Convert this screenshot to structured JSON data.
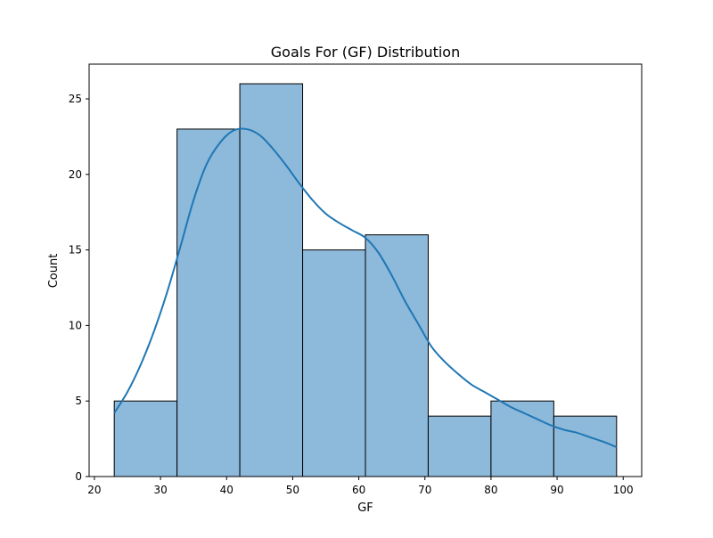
{
  "chart_data": {
    "type": "bar",
    "title": "Goals For (GF) Distribution",
    "xlabel": "GF",
    "ylabel": "Count",
    "xlim": [
      19.2,
      102.8
    ],
    "ylim": [
      0,
      27.3
    ],
    "xticks": [
      20,
      30,
      40,
      50,
      60,
      70,
      80,
      90,
      100
    ],
    "yticks": [
      0,
      5,
      10,
      15,
      20,
      25
    ],
    "bins": [
      {
        "start": 23.0,
        "end": 32.5,
        "count": 5
      },
      {
        "start": 32.5,
        "end": 42.0,
        "count": 23
      },
      {
        "start": 42.0,
        "end": 51.5,
        "count": 26
      },
      {
        "start": 51.5,
        "end": 61.0,
        "count": 15
      },
      {
        "start": 61.0,
        "end": 70.5,
        "count": 16
      },
      {
        "start": 70.5,
        "end": 80.0,
        "count": 4
      },
      {
        "start": 80.0,
        "end": 89.5,
        "count": 5
      },
      {
        "start": 89.5,
        "end": 99.0,
        "count": 4
      }
    ],
    "kde": {
      "x": [
        23,
        25,
        27,
        29,
        31,
        33,
        35,
        37,
        39,
        41,
        43,
        45,
        47,
        49,
        51,
        53,
        55,
        57,
        59,
        61,
        63,
        65,
        67,
        69,
        71,
        73,
        75,
        77,
        79,
        81,
        83,
        85,
        87,
        89,
        91,
        93,
        95,
        97,
        99
      ],
      "y": [
        4.2,
        5.6,
        7.4,
        9.6,
        12.2,
        15.2,
        18.3,
        20.7,
        22.1,
        22.9,
        23.0,
        22.6,
        21.7,
        20.6,
        19.4,
        18.3,
        17.4,
        16.8,
        16.3,
        15.8,
        14.8,
        13.3,
        11.6,
        10.1,
        8.6,
        7.6,
        6.8,
        6.1,
        5.6,
        5.1,
        4.6,
        4.2,
        3.8,
        3.4,
        3.1,
        2.9,
        2.6,
        2.3,
        1.95
      ]
    },
    "bar_fill": "#8db9db",
    "bar_edge": "#000000",
    "line_color": "#1f77b4",
    "grid": false,
    "legend": "none"
  }
}
